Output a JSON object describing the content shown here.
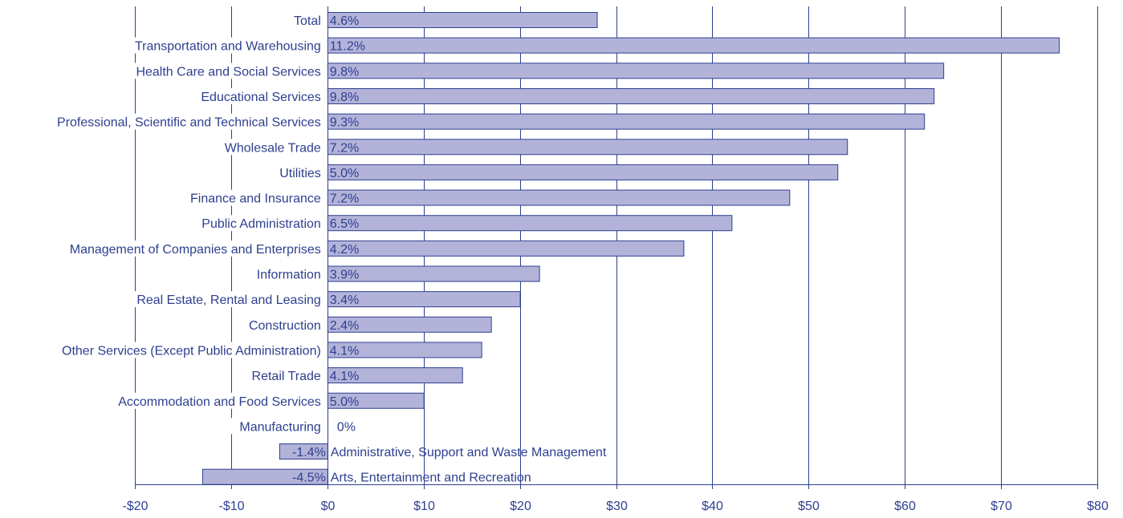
{
  "colors": {
    "bar_fill": "#b3b3d9",
    "bar_stroke": "#2e3f8f",
    "grid": "#2e3f8f",
    "text": "#2e3f8f",
    "background": "#ffffff"
  },
  "chart_data": {
    "type": "bar",
    "orientation": "horizontal",
    "xlim": [
      -20,
      80
    ],
    "x_ticks": [
      -20,
      -10,
      0,
      10,
      20,
      30,
      40,
      50,
      60,
      70,
      80
    ],
    "x_tick_labels": [
      "-$20",
      "-$10",
      "$0",
      "$10",
      "$20",
      "$30",
      "$40",
      "$50",
      "$60",
      "$70",
      "$80"
    ],
    "grid": "vertical",
    "categories": [
      "Total",
      "Transportation and Warehousing",
      "Health Care and Social Services",
      "Educational Services",
      "Professional, Scientific and Technical Services",
      "Wholesale Trade",
      "Utilities",
      "Finance and Insurance",
      "Public Administration",
      "Management of Companies and Enterprises",
      "Information",
      "Real Estate, Rental and Leasing",
      "Construction",
      "Other Services (Except Public Administration)",
      "Retail Trade",
      "Accommodation and Food Services",
      "Manufacturing",
      "Administrative, Support and Waste Management",
      "Arts, Entertainment and Recreation"
    ],
    "values": [
      28,
      76,
      64,
      63,
      62,
      54,
      53,
      48,
      42,
      37,
      22,
      20,
      17,
      16,
      14,
      10,
      0,
      -5,
      -13
    ],
    "data_labels": [
      "4.6%",
      "11.2%",
      "9.8%",
      "9.8%",
      "9.3%",
      "7.2%",
      "5.0%",
      "7.2%",
      "6.5%",
      "4.2%",
      "3.9%",
      "3.4%",
      "2.4%",
      "4.1%",
      "4.1%",
      "5.0%",
      "0%",
      "-1.4%",
      "-4.5%"
    ]
  }
}
